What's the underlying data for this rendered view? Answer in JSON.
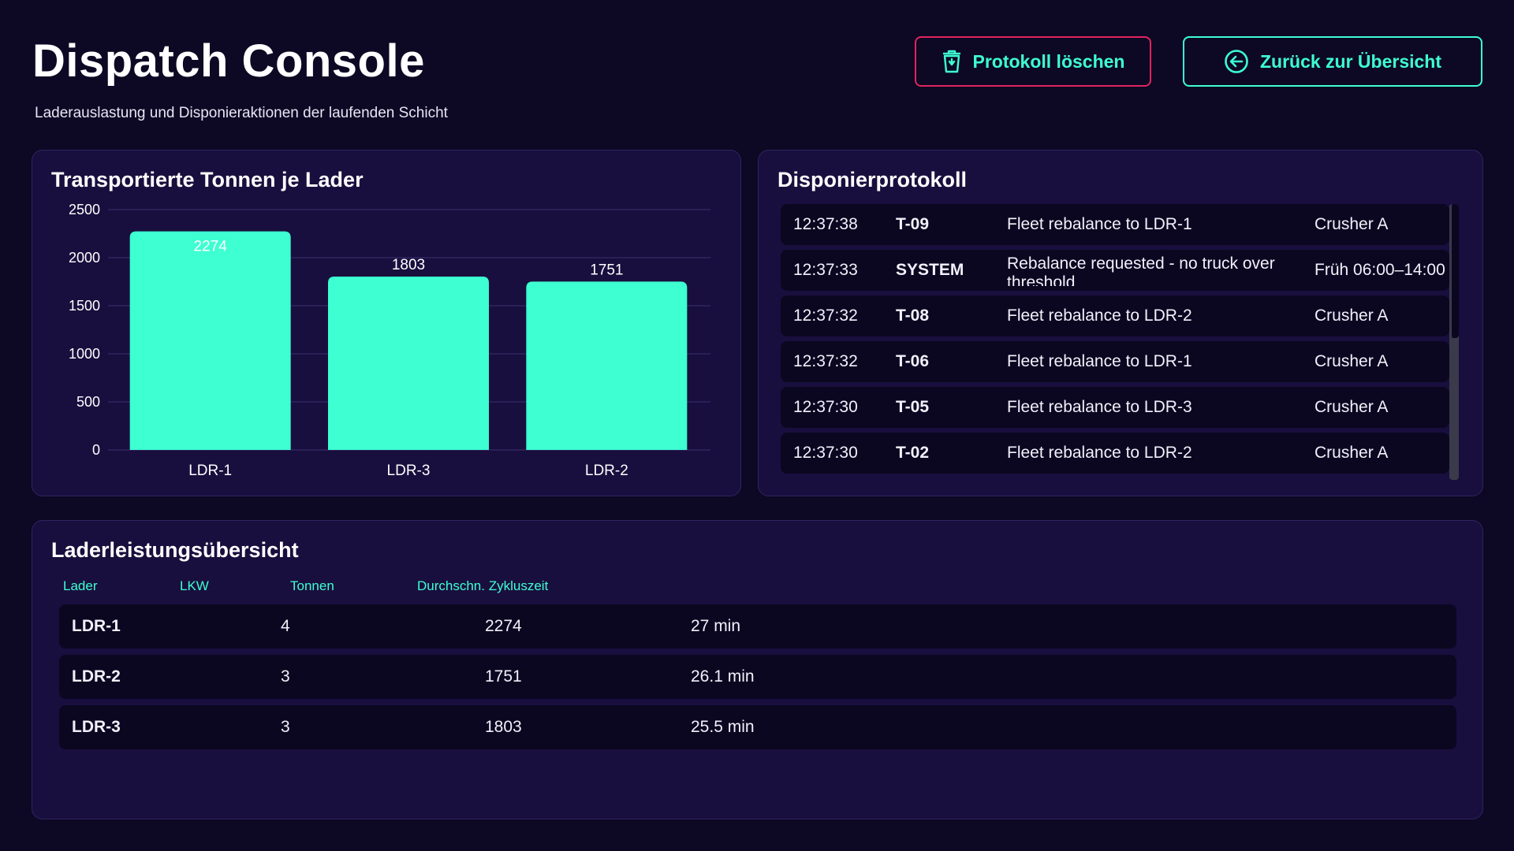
{
  "header": {
    "title": "Dispatch Console",
    "subtitle": "Laderauslastung und Disponieraktionen der laufenden Schicht",
    "clear_label": "Protokoll löschen",
    "back_label": "Zurück zur Übersicht"
  },
  "colors": {
    "accent": "#3dffd2",
    "danger": "#e0245e",
    "background": "#0d0824",
    "card": "#190f3e"
  },
  "chart_panel": {
    "title": "Transportierte Tonnen je Lader"
  },
  "chart_data": {
    "type": "bar",
    "categories": [
      "LDR-1",
      "LDR-3",
      "LDR-2"
    ],
    "values": [
      2274,
      1803,
      1751
    ],
    "yticks": [
      "0",
      "500",
      "1000",
      "1500",
      "2000",
      "2500"
    ],
    "ylim": [
      0,
      2500
    ],
    "grid": true,
    "bar_color": "#3dffd2"
  },
  "log_panel": {
    "title": "Disponierprotokoll",
    "rows": [
      {
        "time": "12:37:38",
        "actor": "T-09",
        "message": "Fleet rebalance to LDR-1",
        "target": "Crusher A"
      },
      {
        "time": "12:37:33",
        "actor": "SYSTEM",
        "message": "Rebalance requested - no truck over threshold",
        "target": "Früh 06:00–14:00"
      },
      {
        "time": "12:37:32",
        "actor": "T-08",
        "message": "Fleet rebalance to LDR-2",
        "target": "Crusher A"
      },
      {
        "time": "12:37:32",
        "actor": "T-06",
        "message": "Fleet rebalance to LDR-1",
        "target": "Crusher A"
      },
      {
        "time": "12:37:30",
        "actor": "T-05",
        "message": "Fleet rebalance to LDR-3",
        "target": "Crusher A"
      },
      {
        "time": "12:37:30",
        "actor": "T-02",
        "message": "Fleet rebalance to LDR-2",
        "target": "Crusher A"
      }
    ]
  },
  "table_panel": {
    "title": "Laderleistungsübersicht",
    "columns": [
      "Lader",
      "LKW",
      "Tonnen",
      "Durchschn. Zykluszeit"
    ],
    "rows": [
      {
        "loader": "LDR-1",
        "trucks": "4",
        "tons": "2274",
        "cycle": "27 min"
      },
      {
        "loader": "LDR-2",
        "trucks": "3",
        "tons": "1751",
        "cycle": "26.1 min"
      },
      {
        "loader": "LDR-3",
        "trucks": "3",
        "tons": "1803",
        "cycle": "25.5 min"
      }
    ]
  }
}
